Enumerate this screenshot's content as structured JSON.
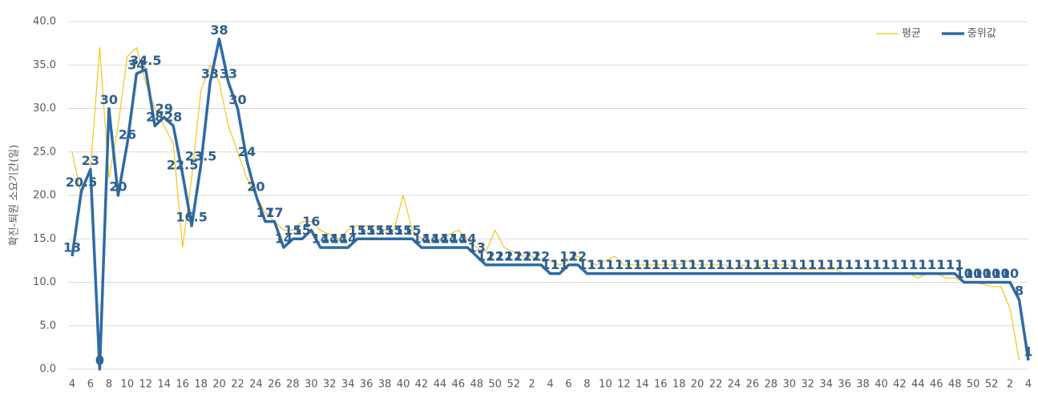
{
  "chart_data": {
    "type": "line",
    "y_label": "확진-퇴원 소요기간(일)",
    "categories": [
      "4",
      null,
      "6",
      null,
      "8",
      null,
      "10",
      null,
      "12",
      null,
      "14",
      null,
      "16",
      null,
      "18",
      null,
      "20",
      null,
      "22",
      null,
      "24",
      null,
      "26",
      null,
      "28",
      null,
      "30",
      null,
      "32",
      null,
      "34",
      null,
      "36",
      null,
      "38",
      null,
      "40",
      null,
      "42",
      null,
      "44",
      null,
      "46",
      null,
      "48",
      null,
      "50",
      null,
      "52",
      null,
      "2",
      null,
      "4",
      null,
      "6",
      null,
      "8",
      null,
      "10",
      null,
      "12",
      null,
      "14",
      null,
      "16",
      null,
      "18",
      null,
      "20",
      null,
      "22",
      null,
      "24",
      null,
      "26",
      null,
      "28",
      null,
      "30",
      null,
      "32",
      null,
      "34",
      null,
      "36",
      null,
      "38",
      null,
      "40",
      null,
      "42",
      null,
      "44",
      null,
      "46",
      null,
      "48",
      null,
      "50",
      null,
      "52",
      null,
      "2",
      null,
      "4"
    ],
    "series": [
      {
        "name": "평균",
        "color": "#f5c518",
        "width": 1.2,
        "labels": false,
        "values": [
          25,
          20,
          23,
          37,
          22,
          28,
          36,
          37,
          33,
          30,
          28,
          26,
          14,
          22,
          32,
          35,
          33,
          28,
          25,
          22,
          20,
          18,
          17,
          16,
          16,
          17,
          17,
          16,
          15.5,
          15,
          16,
          16.5,
          16.5,
          16.5,
          16,
          16,
          20,
          16,
          15,
          14.5,
          15,
          15.5,
          16,
          15,
          14,
          13.5,
          16,
          14,
          13.5,
          13,
          13,
          12.5,
          12.5,
          12,
          12.5,
          13,
          12.5,
          12,
          12.5,
          13,
          12,
          12,
          12,
          12,
          12,
          12,
          12,
          12.5,
          12,
          12,
          12,
          12,
          11.5,
          12,
          11.5,
          12,
          12,
          12,
          12,
          11.5,
          11.5,
          11.5,
          11.5,
          11.5,
          11,
          11,
          11,
          11,
          11,
          11,
          11,
          11,
          10.5,
          11,
          11,
          10.5,
          10.5,
          10,
          10,
          9.8,
          9.5,
          9.5,
          7,
          1,
          null
        ]
      },
      {
        "name": "중위값",
        "color": "#2e6ba3",
        "width": 3.5,
        "labels": true,
        "values": [
          13,
          20.5,
          23,
          0,
          30,
          20,
          26,
          34,
          34.5,
          28,
          29,
          28,
          22.5,
          16.5,
          23.5,
          33,
          38,
          33,
          30,
          24,
          20,
          17,
          17,
          14,
          15,
          15,
          16,
          14,
          14,
          14,
          14,
          15,
          15,
          15,
          15,
          15,
          15,
          15,
          14,
          14,
          14,
          14,
          14,
          14,
          13,
          12,
          12,
          12,
          12,
          12,
          12,
          12,
          11,
          11,
          12,
          12,
          11,
          11,
          11,
          11,
          11,
          11,
          11,
          11,
          11,
          11,
          11,
          11,
          11,
          11,
          11,
          11,
          11,
          11,
          11,
          11,
          11,
          11,
          11,
          11,
          11,
          11,
          11,
          11,
          11,
          11,
          11,
          11,
          11,
          11,
          11,
          11,
          11,
          11,
          11,
          11,
          11,
          10,
          10,
          10,
          10,
          10,
          10,
          8,
          1
        ]
      }
    ],
    "ylim": [
      0,
      40
    ],
    "yticks": [
      {
        "value": 0,
        "label": "0.0"
      },
      {
        "value": 5,
        "label": "5.0"
      },
      {
        "value": 10,
        "label": "10.0"
      },
      {
        "value": 15,
        "label": "15.0"
      },
      {
        "value": 20,
        "label": "20.0"
      },
      {
        "value": 25,
        "label": "25.0"
      },
      {
        "value": 30,
        "label": "30.0"
      },
      {
        "value": 35,
        "label": "35.0"
      },
      {
        "value": 40,
        "label": "40.0"
      }
    ],
    "grid": true,
    "legend": "top-right"
  }
}
